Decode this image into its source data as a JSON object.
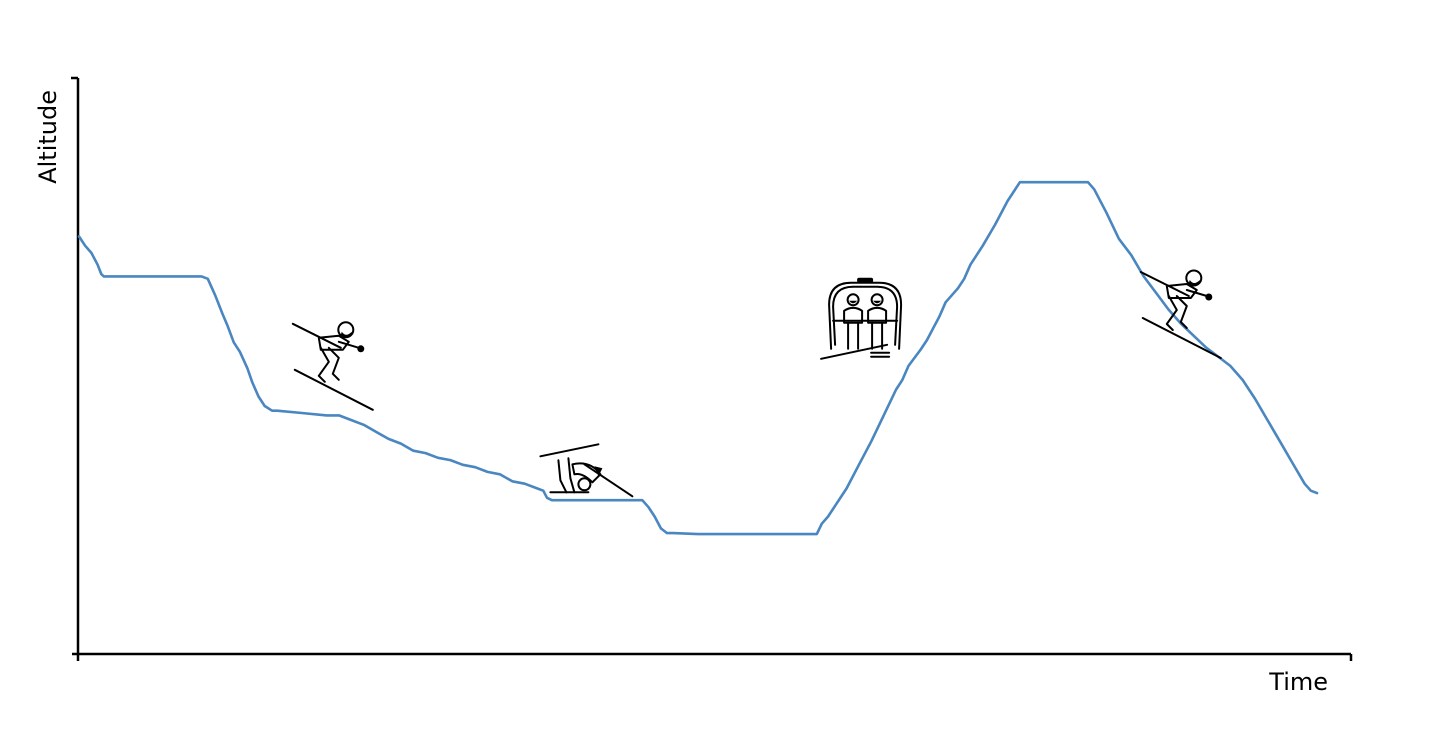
{
  "chart_data": {
    "type": "line",
    "title": "",
    "xlabel": "Time",
    "ylabel": "Altitude",
    "grid": false,
    "legend": "none",
    "xlim": [
      0,
      100
    ],
    "ylim": [
      0,
      100
    ],
    "series": [
      {
        "color": "#4a86c0",
        "points": [
          [
            0,
            75.5
          ],
          [
            0.5,
            73.5
          ],
          [
            1,
            72
          ],
          [
            1.5,
            69.5
          ],
          [
            1.8,
            67.5
          ],
          [
            2,
            67
          ],
          [
            4,
            67
          ],
          [
            6,
            67
          ],
          [
            8,
            67
          ],
          [
            9.9,
            67
          ],
          [
            10.4,
            66.5
          ],
          [
            11,
            63
          ],
          [
            11.6,
            59
          ],
          [
            12,
            56.5
          ],
          [
            12.5,
            53
          ],
          [
            13,
            51
          ],
          [
            13.6,
            47.5
          ],
          [
            14,
            44.5
          ],
          [
            14.5,
            41.5
          ],
          [
            15,
            39.5
          ],
          [
            15.6,
            38.5
          ],
          [
            16,
            38.5
          ],
          [
            18,
            38
          ],
          [
            20,
            37.5
          ],
          [
            21,
            37.5
          ],
          [
            22,
            36.5
          ],
          [
            23,
            35.5
          ],
          [
            24,
            34
          ],
          [
            25,
            32.5
          ],
          [
            26,
            31.5
          ],
          [
            27,
            30
          ],
          [
            28,
            29.5
          ],
          [
            29,
            28.5
          ],
          [
            30,
            28
          ],
          [
            31,
            27
          ],
          [
            32,
            26.5
          ],
          [
            33,
            25.5
          ],
          [
            34,
            25
          ],
          [
            35,
            23.5
          ],
          [
            36,
            23
          ],
          [
            37,
            22
          ],
          [
            37.5,
            21.5
          ],
          [
            37.8,
            20
          ],
          [
            38.2,
            19.5
          ],
          [
            40,
            19.5
          ],
          [
            42,
            19.5
          ],
          [
            44,
            19.5
          ],
          [
            45.5,
            19.5
          ],
          [
            46,
            18
          ],
          [
            46.5,
            16
          ],
          [
            47,
            13.5
          ],
          [
            47.5,
            12.5
          ],
          [
            48,
            12.5
          ],
          [
            50,
            12.3
          ],
          [
            52,
            12.3
          ],
          [
            54,
            12.3
          ],
          [
            56,
            12.3
          ],
          [
            58,
            12.3
          ],
          [
            59.6,
            12.3
          ],
          [
            60,
            14.5
          ],
          [
            60.5,
            16
          ],
          [
            61,
            18
          ],
          [
            62,
            22
          ],
          [
            63,
            27
          ],
          [
            64,
            32
          ],
          [
            65,
            37.5
          ],
          [
            66,
            43
          ],
          [
            66.5,
            45
          ],
          [
            67,
            48
          ],
          [
            68,
            51.5
          ],
          [
            68.5,
            53.5
          ],
          [
            69,
            56
          ],
          [
            69.5,
            58.5
          ],
          [
            70,
            61.5
          ],
          [
            71,
            64.5
          ],
          [
            71.5,
            66.5
          ],
          [
            72,
            69.5
          ],
          [
            73,
            73.5
          ],
          [
            74,
            78
          ],
          [
            75,
            83
          ],
          [
            76,
            87
          ],
          [
            78,
            87
          ],
          [
            80,
            87
          ],
          [
            81.5,
            87
          ],
          [
            82,
            85.5
          ],
          [
            83,
            80.5
          ],
          [
            84,
            75
          ],
          [
            85,
            71.5
          ],
          [
            86,
            67
          ],
          [
            87,
            63.5
          ],
          [
            88,
            60
          ],
          [
            89,
            57
          ],
          [
            90,
            54.5
          ],
          [
            91,
            52
          ],
          [
            92,
            50
          ],
          [
            93,
            48
          ],
          [
            94,
            45
          ],
          [
            95,
            41
          ],
          [
            96,
            36.5
          ],
          [
            97,
            32
          ],
          [
            98,
            27.5
          ],
          [
            99,
            23
          ],
          [
            99.5,
            21.5
          ],
          [
            100,
            21
          ]
        ]
      }
    ],
    "annotations": [
      {
        "icon": "downhill-skier-icon",
        "x": 20.5,
        "y": 51
      },
      {
        "icon": "fallen-skier-icon",
        "x": 40.5,
        "y": 25
      },
      {
        "icon": "chairlift-icon",
        "x": 63.5,
        "y": 58
      },
      {
        "icon": "downhill-skier-icon",
        "x": 89,
        "y": 62
      }
    ]
  }
}
